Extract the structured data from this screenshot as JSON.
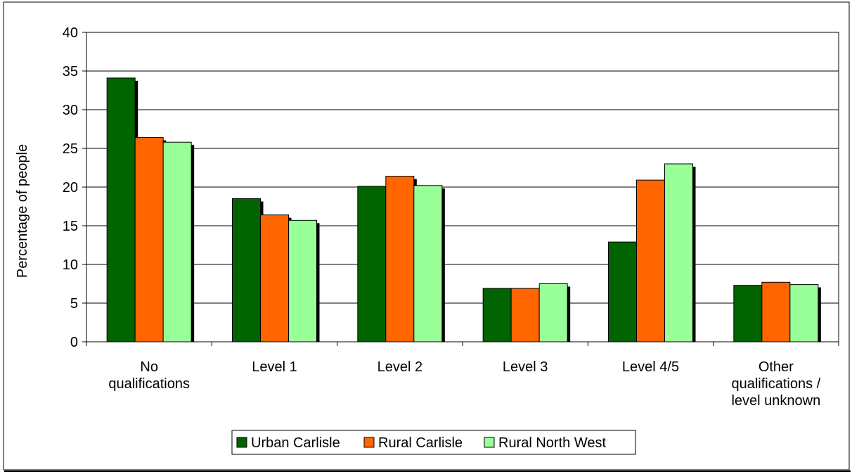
{
  "chart_data": {
    "type": "bar",
    "ylabel": "Percentage of people",
    "ylim": [
      0,
      40
    ],
    "yticks": [
      0,
      5,
      10,
      15,
      20,
      25,
      30,
      35,
      40
    ],
    "categories": [
      [
        "No",
        "qualifications"
      ],
      [
        "Level 1"
      ],
      [
        "Level 2"
      ],
      [
        "Level 3"
      ],
      [
        "Level 4/5"
      ],
      [
        "Other",
        "qualifications /",
        "level unknown"
      ]
    ],
    "series": [
      {
        "name": "Urban Carlisle",
        "color": "#006400",
        "values": [
          34.1,
          18.5,
          20.1,
          6.9,
          12.9,
          7.3
        ]
      },
      {
        "name": "Rural Carlisle",
        "color": "#ff6600",
        "values": [
          26.4,
          16.4,
          21.4,
          6.9,
          20.9,
          7.7
        ]
      },
      {
        "name": "Rural North West",
        "color": "#99ff99",
        "values": [
          25.8,
          15.7,
          20.2,
          7.5,
          23.0,
          7.4
        ]
      }
    ],
    "grid": true,
    "legend_position": "bottom"
  }
}
